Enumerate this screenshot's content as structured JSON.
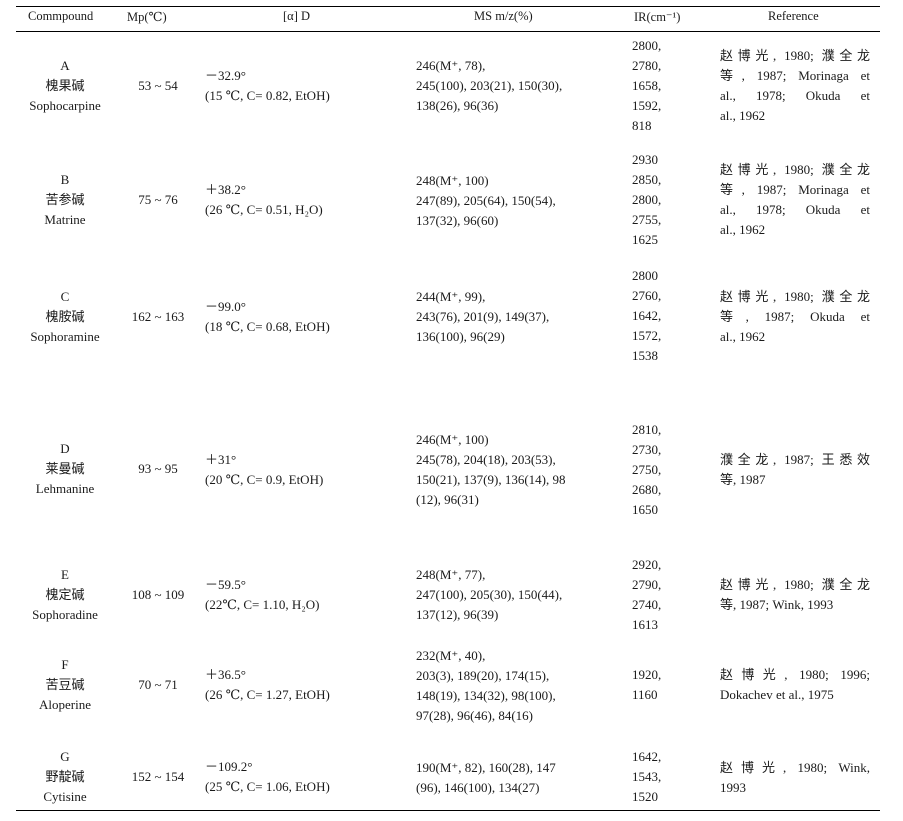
{
  "headers": {
    "compound": "Commpound",
    "mp": "Mp(℃)",
    "rotation": "[α] D",
    "ms": "MS m/z(%)",
    "ir": "IR(cm⁻¹)",
    "reference": "Reference"
  },
  "rows": [
    {
      "letter": "A",
      "cn": "槐果碱",
      "en": "Sophocarpine",
      "mp": "53 ~ 54",
      "rot1": "－32.9°",
      "rot2": "(15 ℃, C= 0.82, EtOH)",
      "ms": [
        "246(M⁺, 78),",
        "245(100), 203(21), 150(30),",
        "138(26), 96(36)"
      ],
      "ir": [
        "2800,",
        "2780,",
        "1658,",
        "1592,",
        "818"
      ],
      "ref": [
        "赵博光, 1980; 濮全龙",
        "等, 1987; Morinaga et",
        "al., 1978; Okuda et",
        "al., 1962"
      ]
    },
    {
      "letter": "B",
      "cn": "苦参碱",
      "en": "Matrine",
      "mp": "75 ~ 76",
      "rot1": "＋38.2°",
      "rot2": "(26 ℃, C= 0.51, H₂O)",
      "ms": [
        "248(M⁺, 100)",
        "247(89), 205(64), 150(54),",
        "137(32), 96(60)"
      ],
      "ir": [
        "2930",
        "2850,",
        "2800,",
        "2755,",
        "1625"
      ],
      "ref": [
        "赵博光, 1980; 濮全龙",
        "等, 1987; Morinaga et",
        "al., 1978; Okuda et",
        "al., 1962"
      ]
    },
    {
      "letter": "C",
      "cn": "槐胺碱",
      "en": "Sophoramine",
      "mp": "162 ~ 163",
      "rot1": "－99.0°",
      "rot2": "(18 ℃, C= 0.68, EtOH)",
      "ms": [
        "244(M⁺, 99),",
        "243(76), 201(9), 149(37),",
        "136(100), 96(29)"
      ],
      "ir": [
        "2800",
        "2760,",
        "1642,",
        "1572,",
        "1538"
      ],
      "ref": [
        "赵博光, 1980; 濮全龙",
        "等, 1987; Okuda et",
        "al., 1962"
      ]
    },
    {
      "letter": "D",
      "cn": "莱曼碱",
      "en": "Lehmanine",
      "mp": "93 ~ 95",
      "rot1": "＋31°",
      "rot2": "(20 ℃, C= 0.9, EtOH)",
      "ms": [
        "246(M⁺, 100)",
        "245(78), 204(18), 203(53),",
        "150(21), 137(9), 136(14), 98",
        "(12), 96(31)"
      ],
      "ir": [
        "2810,",
        "2730,",
        "2750,",
        "2680,",
        "1650"
      ],
      "ref": [
        "濮全龙, 1987; 王悉效",
        "等, 1987"
      ]
    },
    {
      "letter": "E",
      "cn": "槐定碱",
      "en": "Sophoradine",
      "mp": "108 ~ 109",
      "rot1": "－59.5°",
      "rot2": "(22℃, C= 1.10, H₂O)",
      "ms": [
        "248(M⁺, 77),",
        "247(100), 205(30), 150(44),",
        "137(12), 96(39)"
      ],
      "ir": [
        "2920,",
        "2790,",
        "2740,",
        "1613"
      ],
      "ref": [
        "赵博光, 1980; 濮全龙",
        "等, 1987; Wink, 1993"
      ]
    },
    {
      "letter": "F",
      "cn": "苦豆碱",
      "en": "Aloperine",
      "mp": "70 ~ 71",
      "rot1": "＋36.5°",
      "rot2": "(26 ℃, C= 1.27, EtOH)",
      "ms": [
        "232(M⁺, 40),",
        "203(3), 189(20), 174(15),",
        "148(19), 134(32), 98(100),",
        "97(28), 96(46), 84(16)"
      ],
      "ir": [
        "1920,",
        "1160"
      ],
      "ref": [
        "赵博光, 1980; 1996;",
        "Dokachev et al., 1975"
      ]
    },
    {
      "letter": "G",
      "cn": "野靛碱",
      "en": "Cytisine",
      "mp": "152 ~ 154",
      "rot1": "－109.2°",
      "rot2": "(25 ℃, C= 1.06, EtOH)",
      "ms": [
        "190(M⁺, 82), 160(28), 147",
        "(96), 146(100), 134(27)"
      ],
      "ir": [
        "1642,",
        "1543,",
        "1520"
      ],
      "ref": [
        "赵博光, 1980; Wink,",
        "1993"
      ]
    }
  ]
}
